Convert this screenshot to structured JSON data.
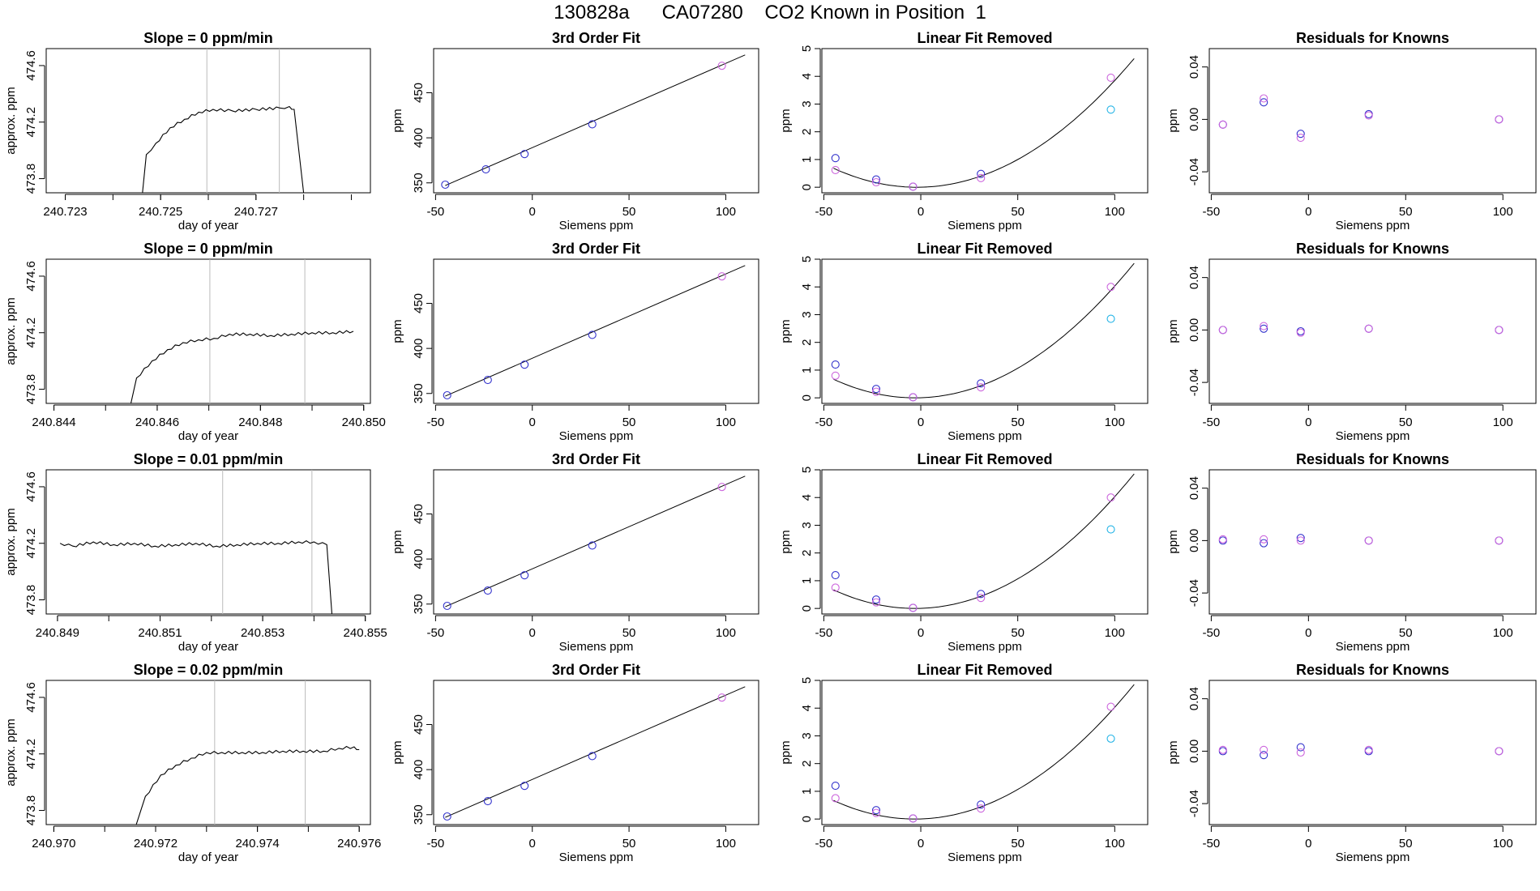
{
  "page_title": "130828a      CA07280    CO2 Known in Position  1",
  "chart_data": [
    {
      "type": "line",
      "title": "Slope =  0  ppm/min",
      "xlabel": "day of year",
      "ylabel": "approx. ppm",
      "xlim": [
        240.7226,
        240.7294
      ],
      "ylim": [
        473.7,
        474.72
      ],
      "xticks": [
        "240.723",
        "240.725",
        "240.727"
      ],
      "yticks": [
        "473.8",
        "474.2",
        "474.6"
      ],
      "vlines": [
        240.72597,
        240.72749
      ],
      "series": [
        {
          "x": [
            240.72462,
            240.7247,
            240.7249,
            240.7252,
            240.7255,
            240.7258,
            240.7261,
            240.7265,
            240.727,
            240.7275,
            240.7277,
            240.7278,
            240.728
          ],
          "y": [
            473.7,
            473.97,
            474.05,
            474.16,
            474.22,
            474.27,
            474.29,
            474.28,
            474.29,
            474.3,
            474.31,
            474.29,
            473.7
          ]
        }
      ]
    },
    {
      "type": "scatter",
      "title": "3rd Order Fit",
      "xlabel": "Siemens ppm",
      "ylabel": "ppm",
      "xlim": [
        -51,
        117
      ],
      "ylim": [
        339,
        499
      ],
      "xticks": [
        -50,
        0,
        50,
        100
      ],
      "yticks": [
        350,
        400,
        450
      ],
      "fit_line": [
        [
          -45,
          347
        ],
        [
          110,
          492
        ]
      ],
      "series": [
        {
          "name": "blue",
          "color": "#3333cc",
          "x": [
            -45,
            -24,
            -4,
            31
          ],
          "y": [
            348,
            365,
            382,
            415
          ]
        },
        {
          "name": "violet",
          "color": "#cc66dd",
          "x": [
            98
          ],
          "y": [
            480
          ]
        }
      ]
    },
    {
      "type": "scatter",
      "title": "Linear Fit Removed",
      "xlabel": "Siemens ppm",
      "ylabel": "ppm",
      "xlim": [
        -51,
        117
      ],
      "ylim": [
        -0.2,
        5
      ],
      "xticks": [
        -50,
        0,
        50,
        100
      ],
      "yticks": [
        0,
        1,
        2,
        3,
        4,
        5
      ],
      "curve": {
        "vertex_x": -2,
        "vertex_y": 0,
        "a": 0.00037,
        "x_from": -45,
        "x_to": 110
      },
      "series": [
        {
          "name": "blue",
          "color": "#3333cc",
          "x": [
            -44,
            -23,
            -4,
            31
          ],
          "y": [
            1.05,
            0.28,
            0.02,
            0.48
          ]
        },
        {
          "name": "violet",
          "color": "#cc66dd",
          "x": [
            -44,
            -23,
            -4,
            31,
            98
          ],
          "y": [
            0.62,
            0.18,
            0.02,
            0.33,
            3.95
          ]
        },
        {
          "name": "cyan",
          "color": "#22b3e6",
          "x": [
            98
          ],
          "y": [
            2.8
          ]
        }
      ]
    },
    {
      "type": "scatter",
      "title": "Residuals for Knowns",
      "xlabel": "Siemens ppm",
      "ylabel": "ppm",
      "xlim": [
        -51,
        117
      ],
      "ylim": [
        -0.056,
        0.054
      ],
      "xticks": [
        -50,
        0,
        50,
        100
      ],
      "yticks": [
        "-0.04",
        "0.00",
        "0.04"
      ],
      "yvals": [
        -0.04,
        0,
        0.04
      ],
      "series": [
        {
          "name": "blue",
          "color": "#3333cc",
          "x": [
            -44,
            -23,
            -4,
            31,
            98
          ],
          "y": [
            -0.004,
            0.013,
            -0.011,
            0.004,
            0
          ]
        },
        {
          "name": "violet",
          "color": "#cc66dd",
          "x": [
            -44,
            -23,
            -4,
            31,
            98
          ],
          "y": [
            -0.004,
            0.016,
            -0.014,
            0.003,
            0
          ]
        }
      ]
    },
    {
      "type": "line",
      "title": "Slope =  0  ppm/min",
      "xlabel": "day of year",
      "ylabel": "approx. ppm",
      "xlim": [
        240.84385,
        240.85013
      ],
      "ylim": [
        473.7,
        474.72
      ],
      "xticks": [
        "240.844",
        "240.846",
        "240.848",
        "240.850"
      ],
      "yticks": [
        "473.8",
        "474.2",
        "474.6"
      ],
      "vlines": [
        240.84702,
        240.84886
      ],
      "series": [
        {
          "x": [
            240.84549,
            240.8456,
            240.8459,
            240.8462,
            240.8465,
            240.8468,
            240.8471,
            240.8474,
            240.8478,
            240.8482,
            240.8486,
            240.849,
            240.8494,
            240.8498
          ],
          "y": [
            473.7,
            473.88,
            474.0,
            474.08,
            474.13,
            474.15,
            474.16,
            474.19,
            474.19,
            474.18,
            474.19,
            474.2,
            474.2,
            474.21
          ]
        }
      ]
    },
    {
      "type": "scatter",
      "title": "3rd Order Fit",
      "xlabel": "Siemens ppm",
      "ylabel": "ppm",
      "xlim": [
        -51,
        117
      ],
      "ylim": [
        339,
        499
      ],
      "xticks": [
        -50,
        0,
        50,
        100
      ],
      "yticks": [
        350,
        400,
        450
      ],
      "fit_line": [
        [
          -45,
          347
        ],
        [
          110,
          492
        ]
      ],
      "series": [
        {
          "name": "blue",
          "color": "#3333cc",
          "x": [
            -44,
            -23,
            -4,
            31
          ],
          "y": [
            348,
            365,
            382,
            415
          ]
        },
        {
          "name": "violet",
          "color": "#cc66dd",
          "x": [
            98
          ],
          "y": [
            480
          ]
        }
      ]
    },
    {
      "type": "scatter",
      "title": "Linear Fit Removed",
      "xlabel": "Siemens ppm",
      "ylabel": "ppm",
      "xlim": [
        -51,
        117
      ],
      "ylim": [
        -0.2,
        5
      ],
      "xticks": [
        -50,
        0,
        50,
        100
      ],
      "yticks": [
        0,
        1,
        2,
        3,
        4,
        5
      ],
      "curve": {
        "vertex_x": -3,
        "vertex_y": 0,
        "a": 0.00038,
        "x_from": -45,
        "x_to": 110
      },
      "series": [
        {
          "name": "blue",
          "color": "#3333cc",
          "x": [
            -44,
            -23,
            -4,
            31
          ],
          "y": [
            1.2,
            0.32,
            0.02,
            0.52
          ]
        },
        {
          "name": "violet",
          "color": "#cc66dd",
          "x": [
            -44,
            -23,
            -4,
            31,
            98
          ],
          "y": [
            0.8,
            0.22,
            0.02,
            0.38,
            4.0
          ]
        },
        {
          "name": "cyan",
          "color": "#22b3e6",
          "x": [
            98
          ],
          "y": [
            2.85
          ]
        }
      ]
    },
    {
      "type": "scatter",
      "title": "Residuals for Knowns",
      "xlabel": "Siemens ppm",
      "ylabel": "ppm",
      "xlim": [
        -51,
        117
      ],
      "ylim": [
        -0.056,
        0.054
      ],
      "xticks": [
        -50,
        0,
        50,
        100
      ],
      "yticks": [
        "-0.04",
        "0.00",
        "0.04"
      ],
      "yvals": [
        -0.04,
        0,
        0.04
      ],
      "series": [
        {
          "name": "blue",
          "color": "#3333cc",
          "x": [
            -44,
            -23,
            -4,
            31,
            98
          ],
          "y": [
            0,
            0.001,
            -0.001,
            0.001,
            0
          ]
        },
        {
          "name": "violet",
          "color": "#cc66dd",
          "x": [
            -44,
            -23,
            -4,
            31,
            98
          ],
          "y": [
            0,
            0.003,
            -0.002,
            0.001,
            0
          ]
        }
      ]
    },
    {
      "type": "line",
      "title": "Slope =  0.01  ppm/min",
      "xlabel": "day of year",
      "ylabel": "approx. ppm",
      "xlim": [
        240.84878,
        240.8551
      ],
      "ylim": [
        473.7,
        474.72
      ],
      "xticks": [
        "240.849",
        "240.851",
        "240.853",
        "240.855"
      ],
      "yticks": [
        "473.8",
        "474.2",
        "474.6"
      ],
      "vlines": [
        240.85222,
        240.85396
      ],
      "series": [
        {
          "x": [
            240.84905,
            240.8493,
            240.8497,
            240.8501,
            240.8505,
            240.8509,
            240.8513,
            240.8517,
            240.8521,
            240.8525,
            240.8529,
            240.8533,
            240.8537,
            240.854,
            240.85425,
            240.85435
          ],
          "y": [
            474.2,
            474.18,
            474.21,
            474.19,
            474.2,
            474.18,
            474.19,
            474.2,
            474.18,
            474.19,
            474.2,
            474.2,
            474.21,
            474.21,
            474.19,
            473.7
          ]
        }
      ]
    },
    {
      "type": "scatter",
      "title": "3rd Order Fit",
      "xlabel": "Siemens ppm",
      "ylabel": "ppm",
      "xlim": [
        -51,
        117
      ],
      "ylim": [
        339,
        499
      ],
      "xticks": [
        -50,
        0,
        50,
        100
      ],
      "yticks": [
        350,
        400,
        450
      ],
      "fit_line": [
        [
          -45,
          347
        ],
        [
          110,
          492
        ]
      ],
      "series": [
        {
          "name": "blue",
          "color": "#3333cc",
          "x": [
            -44,
            -23,
            -4,
            31
          ],
          "y": [
            348,
            365,
            382,
            415
          ]
        },
        {
          "name": "violet",
          "color": "#cc66dd",
          "x": [
            98
          ],
          "y": [
            480
          ]
        }
      ]
    },
    {
      "type": "scatter",
      "title": "Linear Fit Removed",
      "xlabel": "Siemens ppm",
      "ylabel": "ppm",
      "xlim": [
        -51,
        117
      ],
      "ylim": [
        -0.2,
        5
      ],
      "xticks": [
        -50,
        0,
        50,
        100
      ],
      "yticks": [
        0,
        1,
        2,
        3,
        4,
        5
      ],
      "curve": {
        "vertex_x": -3,
        "vertex_y": 0,
        "a": 0.00038,
        "x_from": -45,
        "x_to": 110
      },
      "series": [
        {
          "name": "blue",
          "color": "#3333cc",
          "x": [
            -44,
            -23,
            -4,
            31
          ],
          "y": [
            1.2,
            0.32,
            0.02,
            0.52
          ]
        },
        {
          "name": "violet",
          "color": "#cc66dd",
          "x": [
            -44,
            -23,
            -4,
            31,
            98
          ],
          "y": [
            0.75,
            0.22,
            0.02,
            0.38,
            4.0
          ]
        },
        {
          "name": "cyan",
          "color": "#22b3e6",
          "x": [
            98
          ],
          "y": [
            2.85
          ]
        }
      ]
    },
    {
      "type": "scatter",
      "title": "Residuals for Knowns",
      "xlabel": "Siemens ppm",
      "ylabel": "ppm",
      "xlim": [
        -51,
        117
      ],
      "ylim": [
        -0.056,
        0.054
      ],
      "xticks": [
        -50,
        0,
        50,
        100
      ],
      "yticks": [
        "-0.04",
        "0.00",
        "0.04"
      ],
      "yvals": [
        -0.04,
        0,
        0.04
      ],
      "series": [
        {
          "name": "blue",
          "color": "#3333cc",
          "x": [
            -44,
            -23,
            -4,
            31,
            98
          ],
          "y": [
            0,
            -0.002,
            0.002,
            0,
            0
          ]
        },
        {
          "name": "violet",
          "color": "#cc66dd",
          "x": [
            -44,
            -23,
            -4,
            31,
            98
          ],
          "y": [
            0.001,
            0.001,
            0,
            0,
            0
          ]
        }
      ]
    },
    {
      "type": "line",
      "title": "Slope =  0.02  ppm/min",
      "xlabel": "day of year",
      "ylabel": "approx. ppm",
      "xlim": [
        240.96985,
        240.97622
      ],
      "ylim": [
        473.7,
        474.72
      ],
      "xticks": [
        "240.970",
        "240.972",
        "240.974",
        "240.976"
      ],
      "yticks": [
        "473.8",
        "474.2",
        "474.6"
      ],
      "vlines": [
        240.97316,
        240.97494
      ],
      "series": [
        {
          "x": [
            240.97162,
            240.9718,
            240.9721,
            240.9724,
            240.9727,
            240.973,
            240.9733,
            240.9737,
            240.9741,
            240.9745,
            240.9749,
            240.9753,
            240.9756,
            240.9759,
            240.976
          ],
          "y": [
            473.7,
            473.9,
            474.05,
            474.12,
            474.17,
            474.21,
            474.21,
            474.21,
            474.21,
            474.22,
            474.22,
            474.22,
            474.24,
            474.25,
            474.23
          ]
        }
      ]
    },
    {
      "type": "scatter",
      "title": "3rd Order Fit",
      "xlabel": "Siemens ppm",
      "ylabel": "ppm",
      "xlim": [
        -51,
        117
      ],
      "ylim": [
        339,
        499
      ],
      "xticks": [
        -50,
        0,
        50,
        100
      ],
      "yticks": [
        350,
        400,
        450
      ],
      "fit_line": [
        [
          -45,
          347
        ],
        [
          110,
          492
        ]
      ],
      "series": [
        {
          "name": "blue",
          "color": "#3333cc",
          "x": [
            -44,
            -23,
            -4,
            31
          ],
          "y": [
            348,
            365,
            382,
            415
          ]
        },
        {
          "name": "violet",
          "color": "#cc66dd",
          "x": [
            98
          ],
          "y": [
            480
          ]
        }
      ]
    },
    {
      "type": "scatter",
      "title": "Linear Fit Removed",
      "xlabel": "Siemens ppm",
      "ylabel": "ppm",
      "xlim": [
        -51,
        117
      ],
      "ylim": [
        -0.2,
        5
      ],
      "xticks": [
        -50,
        0,
        50,
        100
      ],
      "yticks": [
        0,
        1,
        2,
        3,
        4,
        5
      ],
      "curve": {
        "vertex_x": -3,
        "vertex_y": 0,
        "a": 0.00038,
        "x_from": -45,
        "x_to": 110
      },
      "series": [
        {
          "name": "blue",
          "color": "#3333cc",
          "x": [
            -44,
            -23,
            -4,
            31
          ],
          "y": [
            1.2,
            0.32,
            0.02,
            0.52
          ]
        },
        {
          "name": "violet",
          "color": "#cc66dd",
          "x": [
            -44,
            -23,
            -4,
            31,
            98
          ],
          "y": [
            0.75,
            0.22,
            0.02,
            0.38,
            4.05
          ]
        },
        {
          "name": "cyan",
          "color": "#22b3e6",
          "x": [
            98
          ],
          "y": [
            2.9
          ]
        }
      ]
    },
    {
      "type": "scatter",
      "title": "Residuals for Knowns",
      "xlabel": "Siemens ppm",
      "ylabel": "ppm",
      "xlim": [
        -51,
        117
      ],
      "ylim": [
        -0.056,
        0.054
      ],
      "xticks": [
        -50,
        0,
        50,
        100
      ],
      "yticks": [
        "-0.04",
        "0.00",
        "0.04"
      ],
      "yvals": [
        -0.04,
        0,
        0.04
      ],
      "series": [
        {
          "name": "blue",
          "color": "#3333cc",
          "x": [
            -44,
            -23,
            -4,
            31,
            98
          ],
          "y": [
            0,
            -0.003,
            0.003,
            0,
            0
          ]
        },
        {
          "name": "violet",
          "color": "#cc66dd",
          "x": [
            -44,
            -23,
            -4,
            31,
            98
          ],
          "y": [
            0.001,
            0.001,
            -0.001,
            0.001,
            0
          ]
        }
      ]
    }
  ]
}
